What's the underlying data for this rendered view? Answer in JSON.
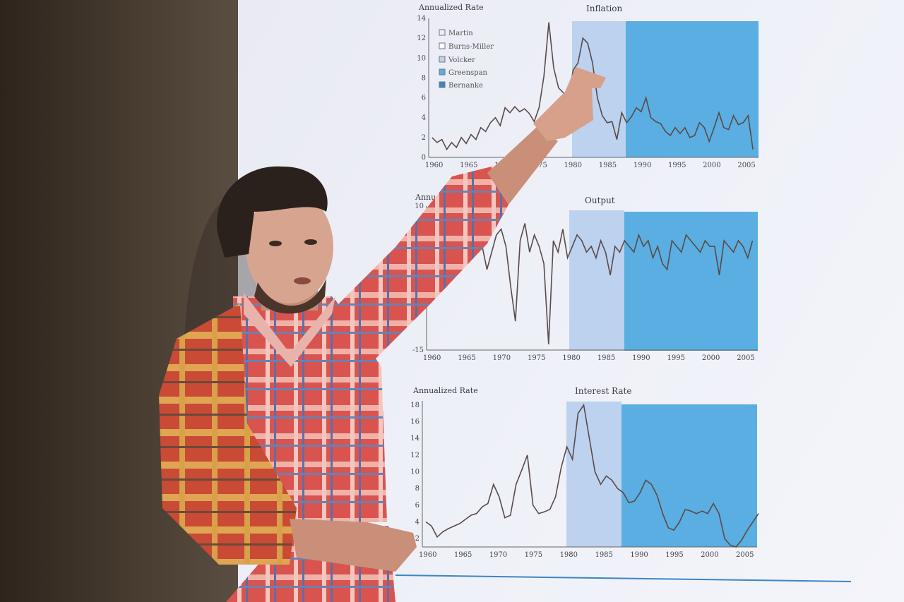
{
  "scene": {
    "description_colors": {
      "wall": "#3a2f26",
      "screen": "#eef0f8",
      "burns_miller_shade": "#bcd2ee",
      "greenspan_shade": "#5aaee2",
      "shirt_red": "#d9544f"
    }
  },
  "chart_data": [
    {
      "type": "line",
      "title": "Inflation",
      "ylabel": "Annualized Rate",
      "x_ticks": [
        "1960",
        "1965",
        "1970",
        "1975",
        "1980",
        "1985",
        "1990",
        "1995",
        "2000",
        "2005"
      ],
      "y_ticks": [
        "0",
        "2",
        "4",
        "6",
        "8",
        "10",
        "12",
        "14"
      ],
      "legend": [
        "Martin",
        "Burns-Miller",
        "Volcker",
        "Greenspan",
        "Bernanke"
      ],
      "shaded_periods": [
        {
          "name": "Burns-Miller",
          "x": [
            1979.6,
            1987.6
          ]
        },
        {
          "name": "Greenspan",
          "x": [
            1987.6,
            2006.8
          ]
        }
      ],
      "ylim": [
        0,
        14
      ],
      "xlim": [
        1959.5,
        2007
      ],
      "series_y": [
        2,
        1.5,
        1.8,
        0.8,
        1.5,
        1,
        2,
        1.4,
        2.3,
        1.8,
        3,
        2.6,
        3.5,
        4,
        3.2,
        5,
        4.5,
        5.1,
        4.6,
        4.9,
        4.4,
        3.6,
        5,
        8.2,
        13.6,
        9,
        7,
        6.5,
        5.8,
        8.8,
        9.5,
        12,
        11.5,
        9.5,
        6,
        4.2,
        3.5,
        3.6,
        1.8,
        4.5,
        3.5,
        4.1,
        5,
        4.6,
        6,
        4,
        3.6,
        3.4,
        2.6,
        2.2,
        3,
        2.4,
        3,
        2,
        2.2,
        3.5,
        3,
        1.6,
        3,
        4.5,
        3,
        2.8,
        4.2,
        3.3,
        3.5,
        4.2,
        0.8
      ],
      "series_x_start": 1960,
      "series_x_step": 0.7
    },
    {
      "type": "line",
      "title": "Output",
      "ylabel": "Annualized Rate",
      "x_ticks": [
        "1960",
        "1965",
        "1970",
        "1975",
        "1980",
        "1985",
        "1990",
        "1995",
        "2000",
        "2005"
      ],
      "y_ticks": [
        "10",
        "-15"
      ],
      "shaded_periods": [
        {
          "name": "Burns-Miller",
          "x": [
            1979.6,
            1987.6
          ]
        },
        {
          "name": "Greenspan",
          "x": [
            1987.6,
            2006.8
          ]
        }
      ],
      "ylim": [
        -15,
        10
      ],
      "xlim": [
        1959.5,
        2007
      ],
      "series_y": [
        5,
        3,
        -2,
        4,
        6,
        2,
        5,
        3,
        6,
        2,
        4,
        3,
        -1,
        2,
        5,
        6,
        3,
        -4,
        -10,
        4,
        7,
        2,
        5,
        3,
        0,
        -14,
        4,
        2,
        6,
        1,
        3,
        5,
        4,
        2,
        3,
        1,
        4,
        2,
        -2,
        3,
        2,
        4,
        3,
        2,
        5,
        3,
        4,
        1,
        3,
        0,
        -1,
        4,
        3,
        2,
        5,
        4,
        3,
        2,
        4,
        3,
        3,
        -2,
        4,
        3,
        2,
        4,
        3,
        1,
        4
      ],
      "series_x_start": 1960,
      "series_x_step": 0.68
    },
    {
      "type": "line",
      "title": "Interest Rate",
      "ylabel": "Annualized Rate",
      "x_ticks": [
        "1960",
        "1965",
        "1970",
        "1975",
        "1980",
        "1985",
        "1990",
        "1995",
        "2000",
        "2005"
      ],
      "y_ticks": [
        "2",
        "4",
        "6",
        "8",
        "10",
        "12",
        "14",
        "16",
        "18"
      ],
      "shaded_periods": [
        {
          "name": "Burns-Miller",
          "x": [
            1979.6,
            1987.6
          ]
        },
        {
          "name": "Greenspan",
          "x": [
            1987.6,
            2006.8
          ]
        }
      ],
      "ylim": [
        1,
        18.5
      ],
      "xlim": [
        1959.5,
        2007
      ],
      "series_y": [
        4,
        3.5,
        2.2,
        2.8,
        3.2,
        3.5,
        3.8,
        4.3,
        4.8,
        5,
        5.8,
        6.2,
        8.5,
        7,
        4.5,
        4.8,
        8.5,
        10.2,
        12,
        6,
        5,
        5.2,
        5.5,
        7,
        10.5,
        13,
        11.5,
        17,
        18,
        14,
        10,
        8.5,
        9.5,
        9,
        8,
        7.5,
        6.3,
        6.5,
        7.5,
        9,
        8.5,
        7.2,
        5,
        3.3,
        3,
        4,
        5.5,
        5.3,
        5,
        5.3,
        5,
        6.2,
        5,
        2,
        1.2,
        1,
        1.8,
        3,
        4,
        5
      ],
      "series_x_start": 1960,
      "series_x_step": 0.8
    }
  ]
}
